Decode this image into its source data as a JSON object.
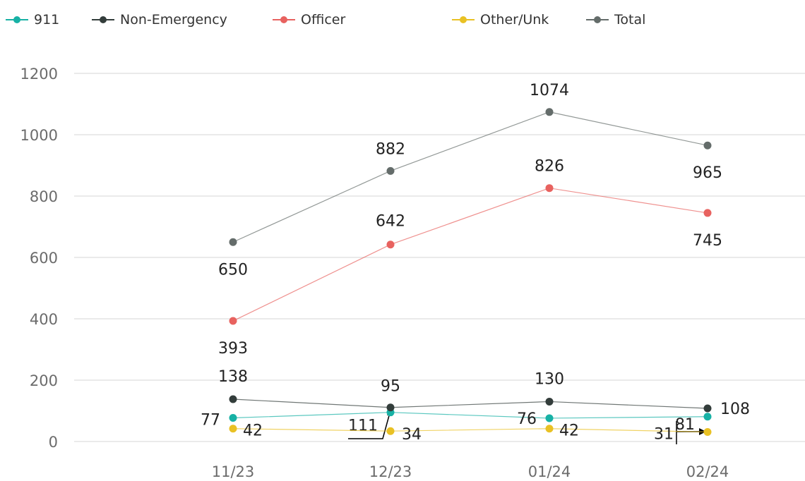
{
  "chart_data": {
    "type": "line",
    "categories": [
      "11/23",
      "12/23",
      "01/24",
      "02/24"
    ],
    "yticks": [
      0,
      200,
      400,
      600,
      800,
      1000,
      1200
    ],
    "ylim": [
      0,
      1200
    ],
    "grid": true,
    "legend_position": "top-left",
    "series": [
      {
        "name": "911",
        "color": "#17b1a5",
        "values": [
          77,
          95,
          76,
          81
        ]
      },
      {
        "name": "Non-Emergency",
        "color": "#333d3b",
        "values": [
          138,
          111,
          130,
          108
        ]
      },
      {
        "name": "Officer",
        "color": "#e8625f",
        "values": [
          393,
          642,
          826,
          745
        ]
      },
      {
        "name": "Other/Unk",
        "color": "#e9c124",
        "values": [
          42,
          34,
          42,
          31
        ]
      },
      {
        "name": "Total",
        "color": "#646c6a",
        "values": [
          650,
          882,
          1074,
          965
        ]
      }
    ]
  }
}
